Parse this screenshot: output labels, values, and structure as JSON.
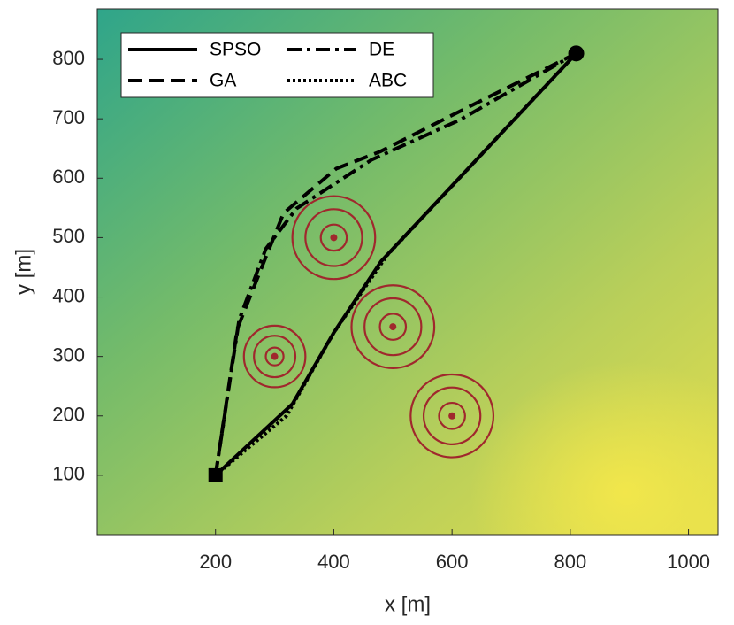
{
  "chart_data": {
    "type": "path",
    "xlabel": "x [m]",
    "ylabel": "y [m]",
    "xlim": [
      0,
      1050
    ],
    "ylim": [
      0,
      885
    ],
    "xticks": [
      200,
      400,
      600,
      800,
      1000
    ],
    "yticks": [
      100,
      200,
      300,
      400,
      500,
      600,
      700,
      800
    ],
    "start": {
      "x": 200,
      "y": 100
    },
    "goal": {
      "x": 810,
      "y": 810
    },
    "obstacles": [
      {
        "x": 400,
        "y": 500,
        "radii": [
          22,
          48,
          70
        ]
      },
      {
        "x": 500,
        "y": 350,
        "radii": [
          22,
          48,
          70
        ]
      },
      {
        "x": 300,
        "y": 300,
        "radii": [
          15,
          35,
          52
        ]
      },
      {
        "x": 600,
        "y": 200,
        "radii": [
          22,
          48,
          70
        ]
      }
    ],
    "obstacle_color": "#a0282d",
    "series": [
      {
        "name": "SPSO",
        "color": "#000000",
        "style": "solid",
        "x": [
          200,
          330,
          400,
          480,
          810
        ],
        "y": [
          100,
          220,
          340,
          460,
          810
        ]
      },
      {
        "name": "DE",
        "color": "#000000",
        "style": "dashdot",
        "x": [
          200,
          240,
          285,
          337,
          464,
          613,
          810
        ],
        "y": [
          100,
          362,
          481,
          549,
          631,
          698,
          810
        ]
      },
      {
        "name": "GA",
        "color": "#000000",
        "style": "dashed",
        "x": [
          200,
          237,
          285,
          315,
          404,
          479,
          598,
          810
        ],
        "y": [
          100,
          347,
          467,
          541,
          616,
          645,
          705,
          810
        ]
      },
      {
        "name": "ABC",
        "color": "#000000",
        "style": "dotted",
        "x": [
          200,
          320,
          400,
          490,
          810
        ],
        "y": [
          100,
          200,
          340,
          470,
          810
        ]
      }
    ]
  }
}
